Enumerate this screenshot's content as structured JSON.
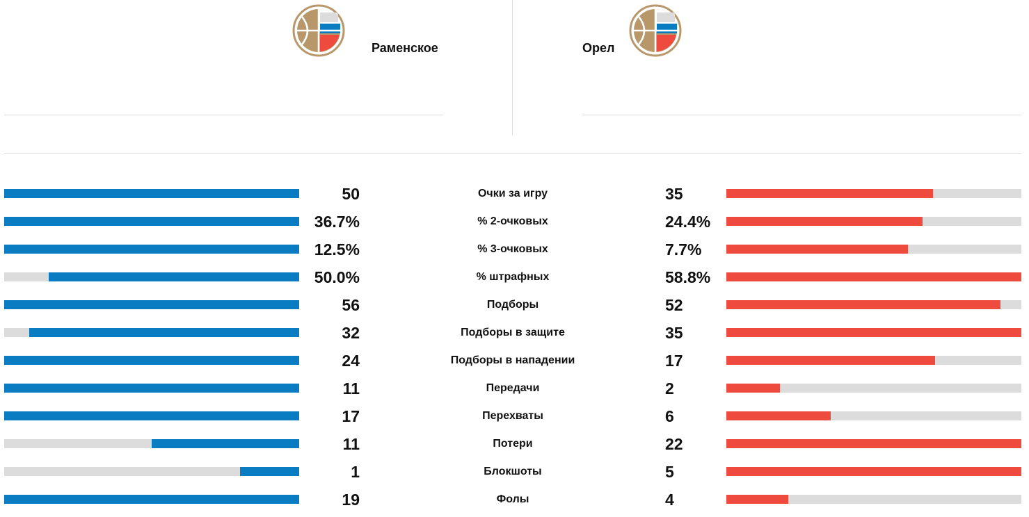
{
  "home": {
    "name": "Раменское",
    "logo_icon": "basketball-russia-flag-logo"
  },
  "away": {
    "name": "Орел",
    "logo_icon": "basketball-russia-flag-logo"
  },
  "colors": {
    "home": "#0a7cc1",
    "away": "#ee4a3d",
    "track": "#dcdcdc"
  },
  "stats": [
    {
      "label": "Очки за игру",
      "home": "50",
      "away": "35",
      "home_fill": 1.0,
      "away_fill": 0.7
    },
    {
      "label": "% 2-очковых",
      "home": "36.7%",
      "away": "24.4%",
      "home_fill": 1.0,
      "away_fill": 0.665
    },
    {
      "label": "% 3-очковых",
      "home": "12.5%",
      "away": "7.7%",
      "home_fill": 1.0,
      "away_fill": 0.616
    },
    {
      "label": "% штрафных",
      "home": "50.0%",
      "away": "58.8%",
      "home_fill": 0.85,
      "away_fill": 1.0
    },
    {
      "label": "Подборы",
      "home": "56",
      "away": "52",
      "home_fill": 1.0,
      "away_fill": 0.929
    },
    {
      "label": "Подборы в защите",
      "home": "32",
      "away": "35",
      "home_fill": 0.914,
      "away_fill": 1.0
    },
    {
      "label": "Подборы в нападении",
      "home": "24",
      "away": "17",
      "home_fill": 1.0,
      "away_fill": 0.708
    },
    {
      "label": "Передачи",
      "home": "11",
      "away": "2",
      "home_fill": 1.0,
      "away_fill": 0.182
    },
    {
      "label": "Перехваты",
      "home": "17",
      "away": "6",
      "home_fill": 1.0,
      "away_fill": 0.353
    },
    {
      "label": "Потери",
      "home": "11",
      "away": "22",
      "home_fill": 0.5,
      "away_fill": 1.0
    },
    {
      "label": "Блокшоты",
      "home": "1",
      "away": "5",
      "home_fill": 0.2,
      "away_fill": 1.0
    },
    {
      "label": "Фолы",
      "home": "19",
      "away": "4",
      "home_fill": 1.0,
      "away_fill": 0.211
    }
  ]
}
